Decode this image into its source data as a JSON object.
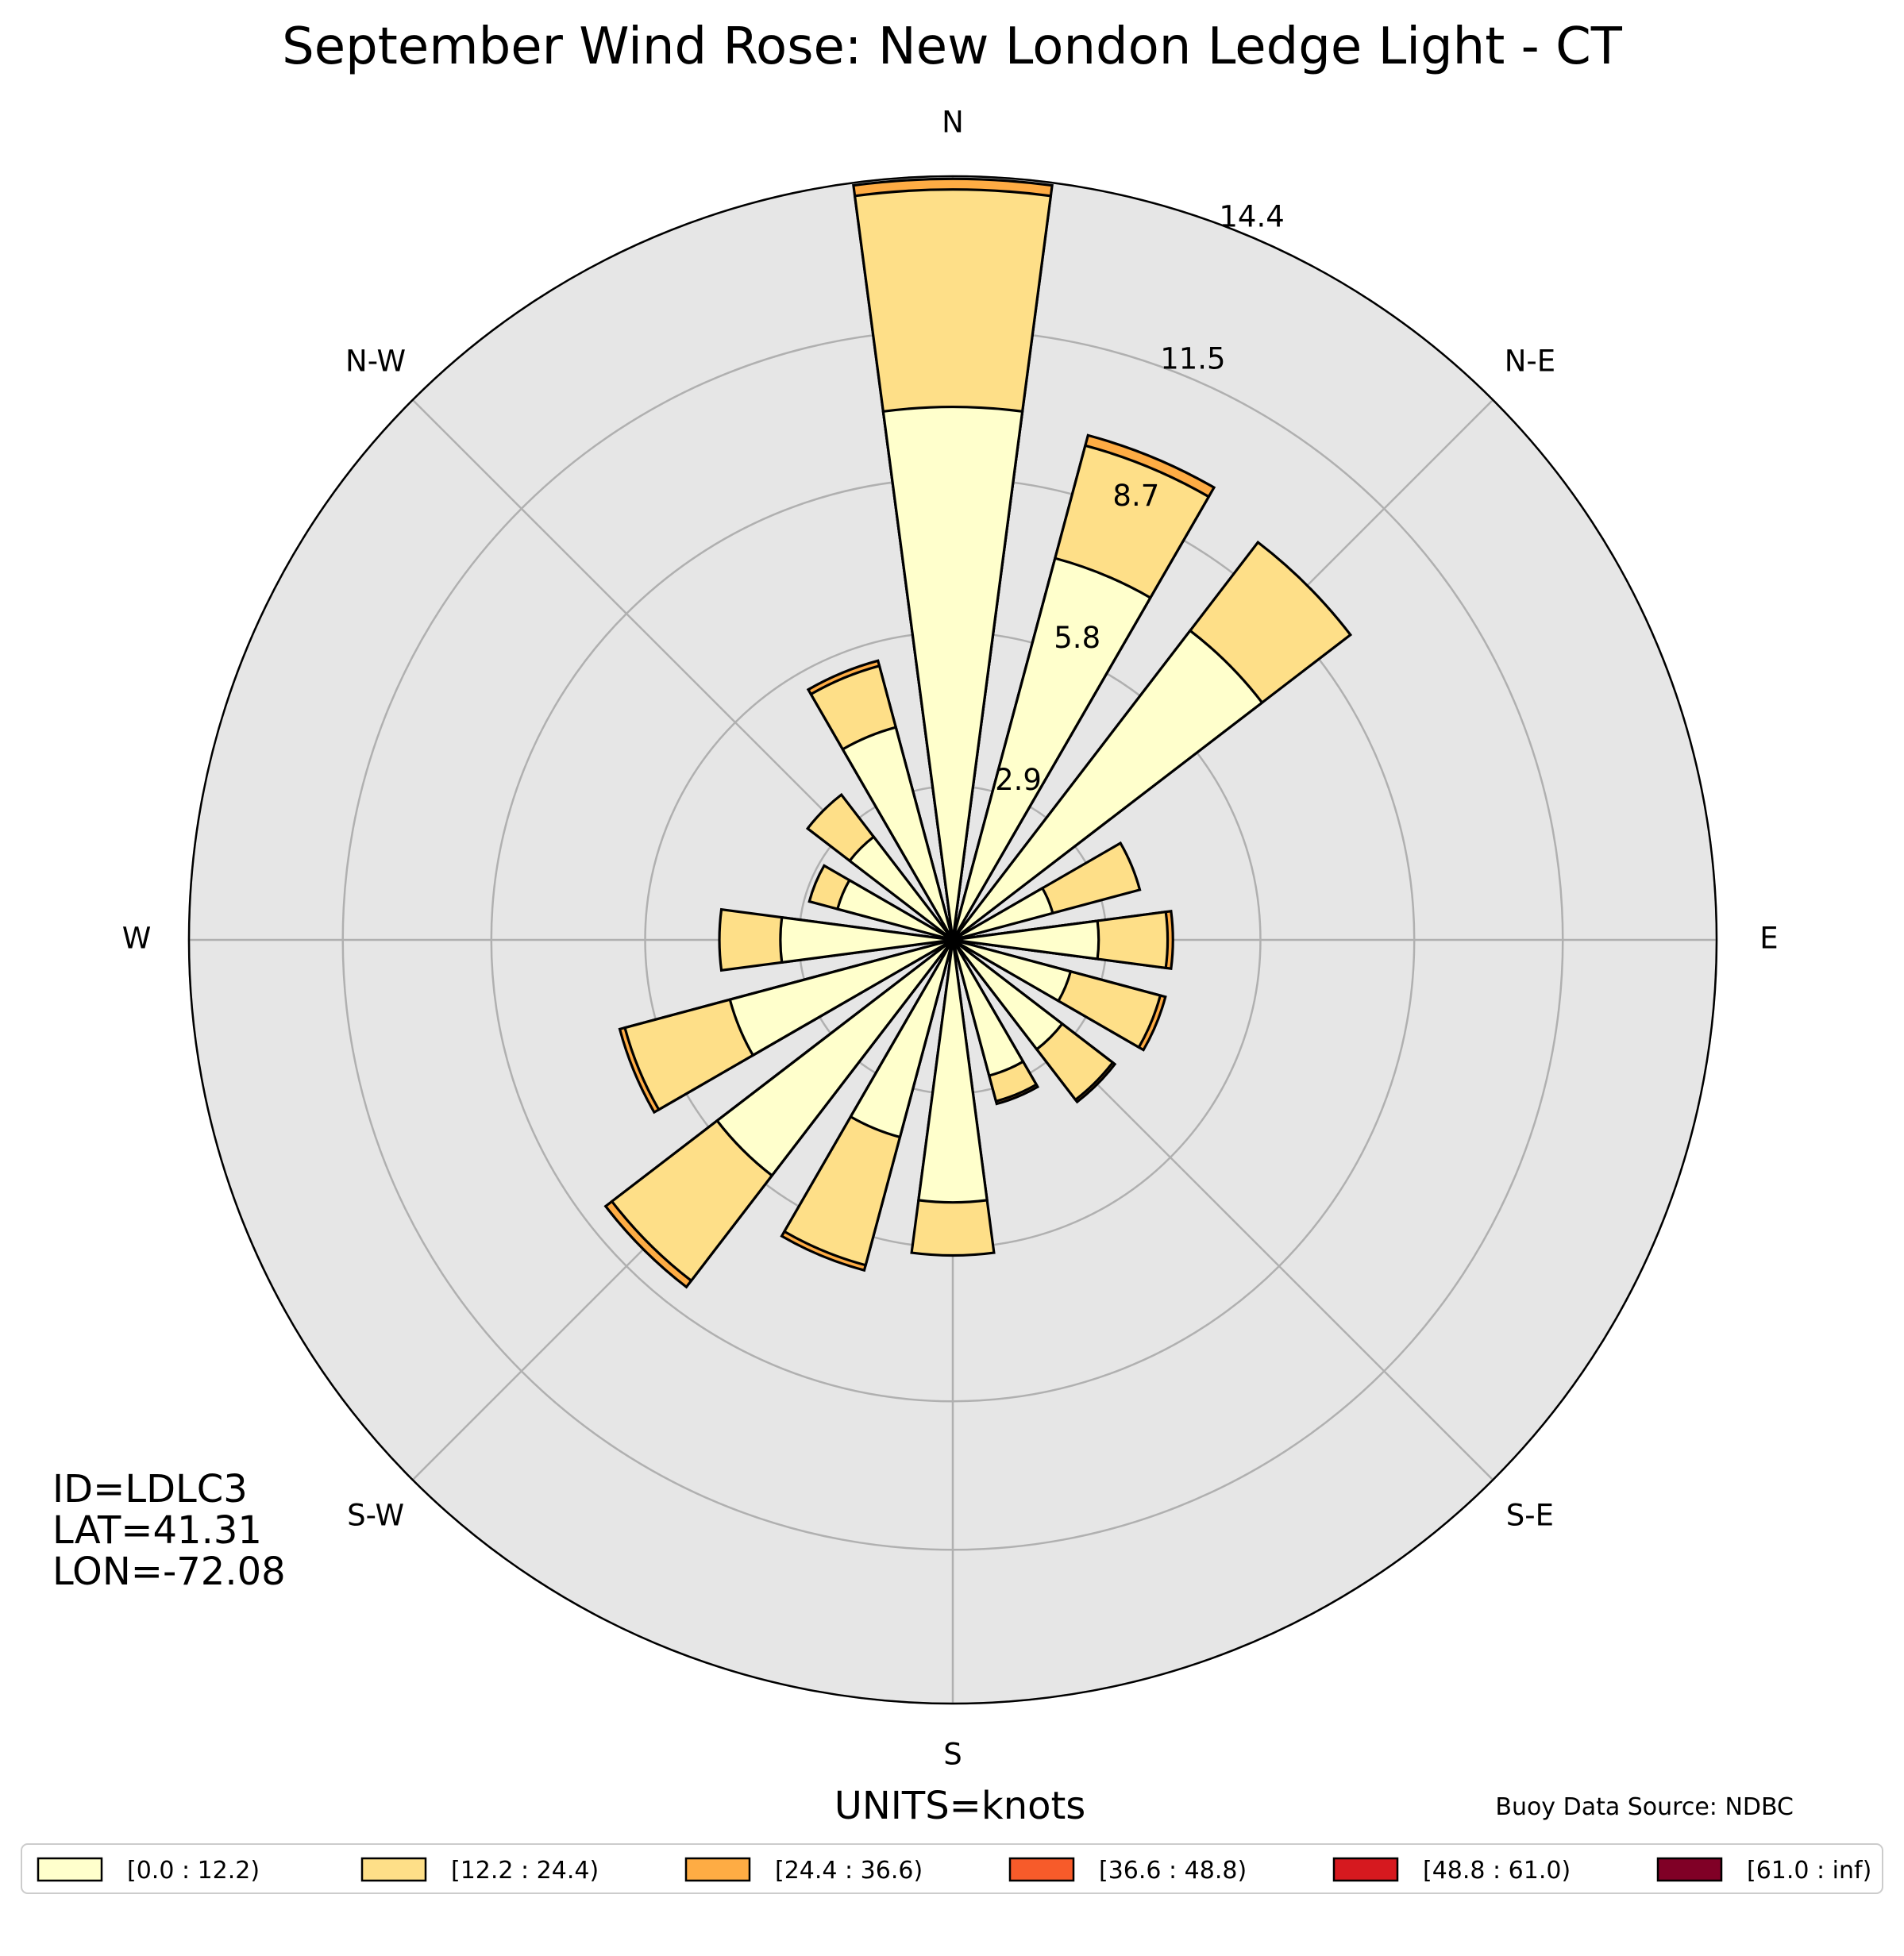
{
  "chart_data": {
    "type": "windrose",
    "title": "September Wind Rose: New London Ledge Light - CT",
    "units_label": "UNITS=knots",
    "source_label": "Buoy Data Source: NDBC",
    "station_info": [
      "ID=LDLC3",
      "LAT=41.31",
      "LON=-72.08"
    ],
    "rmax": 14.4,
    "ring_values": [
      2.9,
      5.8,
      8.7,
      11.5,
      14.4
    ],
    "ring_labels": [
      "2.9",
      "5.8",
      "8.7",
      "11.5",
      "14.4"
    ],
    "direction_labels": [
      {
        "label": "N",
        "angle": 0
      },
      {
        "label": "N-E",
        "angle": 45
      },
      {
        "label": "E",
        "angle": 90
      },
      {
        "label": "S-E",
        "angle": 135
      },
      {
        "label": "S",
        "angle": 180
      },
      {
        "label": "S-W",
        "angle": 225
      },
      {
        "label": "W",
        "angle": 270
      },
      {
        "label": "N-W",
        "angle": 315
      }
    ],
    "grid": true,
    "legend_position": "bottom",
    "speed_bins": [
      {
        "label": "[0.0 : 12.2)",
        "color": "#ffffcc"
      },
      {
        "label": "[12.2 : 24.4)",
        "color": "#fedf88"
      },
      {
        "label": "[24.4 : 36.6)",
        "color": "#feac44"
      },
      {
        "label": "[36.6 : 48.8)",
        "color": "#f75b2a"
      },
      {
        "label": "[48.8 : 61.0)",
        "color": "#d6191f"
      },
      {
        "label": "[61.0 : inf)",
        "color": "#800026"
      }
    ],
    "sectors": [
      {
        "direction": 0,
        "cumulative": [
          10.05,
          14.15,
          14.35,
          14.35,
          14.35,
          14.35
        ]
      },
      {
        "direction": 22.5,
        "cumulative": [
          7.45,
          9.65,
          9.85,
          9.85,
          9.85,
          9.85
        ]
      },
      {
        "direction": 45,
        "cumulative": [
          7.35,
          9.45,
          9.45,
          9.45,
          9.45,
          9.45
        ]
      },
      {
        "direction": 67.5,
        "cumulative": [
          1.95,
          3.65,
          3.65,
          3.65,
          3.65,
          3.65
        ]
      },
      {
        "direction": 90,
        "cumulative": [
          2.75,
          4.05,
          4.15,
          4.15,
          4.15,
          4.15
        ]
      },
      {
        "direction": 112.5,
        "cumulative": [
          2.3,
          4.05,
          4.15,
          4.15,
          4.15,
          4.15
        ]
      },
      {
        "direction": 135,
        "cumulative": [
          2.6,
          3.8,
          3.85,
          3.85,
          3.85,
          3.85
        ]
      },
      {
        "direction": 157.5,
        "cumulative": [
          2.65,
          3.15,
          3.2,
          3.2,
          3.2,
          3.2
        ]
      },
      {
        "direction": 180,
        "cumulative": [
          4.95,
          5.95,
          5.95,
          5.95,
          5.95,
          5.95
        ]
      },
      {
        "direction": 202.5,
        "cumulative": [
          3.85,
          6.35,
          6.45,
          6.45,
          6.45,
          6.45
        ]
      },
      {
        "direction": 225,
        "cumulative": [
          5.6,
          8.1,
          8.25,
          8.25,
          8.25,
          8.25
        ]
      },
      {
        "direction": 247.5,
        "cumulative": [
          4.35,
          6.4,
          6.5,
          6.5,
          6.5,
          6.5
        ]
      },
      {
        "direction": 270,
        "cumulative": [
          3.25,
          4.4,
          4.4,
          4.4,
          4.4,
          4.4
        ]
      },
      {
        "direction": 292.5,
        "cumulative": [
          2.25,
          2.8,
          2.8,
          2.8,
          2.8,
          2.8
        ]
      },
      {
        "direction": 315,
        "cumulative": [
          2.45,
          3.45,
          3.45,
          3.45,
          3.45,
          3.45
        ]
      },
      {
        "direction": 337.5,
        "cumulative": [
          4.15,
          5.35,
          5.45,
          5.45,
          5.45,
          5.45
        ]
      }
    ]
  }
}
